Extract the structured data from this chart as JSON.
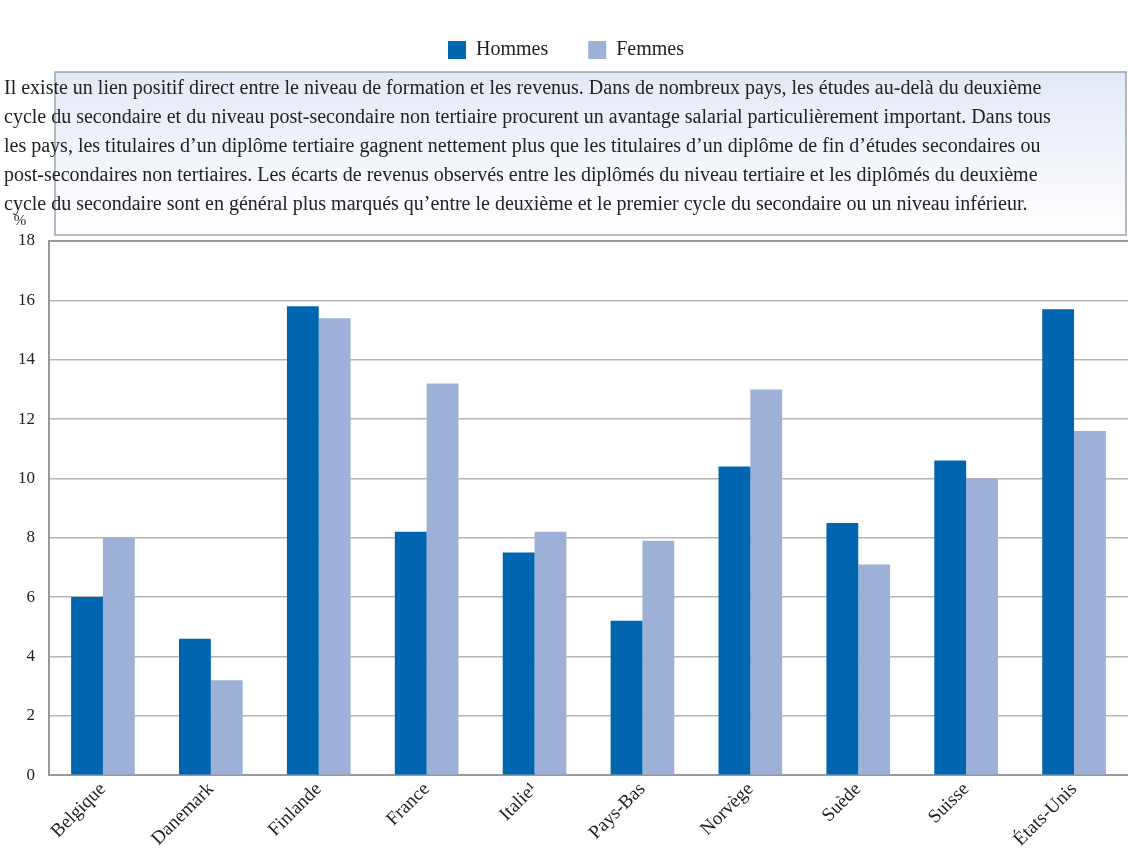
{
  "chart_data": {
    "type": "bar",
    "categories": [
      "Belgique",
      "Danemark",
      "Finlande",
      "France",
      "Italie¹",
      "Pays-Bas",
      "Norvège",
      "Suède",
      "Suisse",
      "États-Unis"
    ],
    "series": [
      {
        "name": "Hommes",
        "color": "#0066b0",
        "values": [
          6.0,
          4.6,
          15.8,
          8.2,
          7.5,
          5.2,
          10.4,
          8.5,
          10.6,
          15.7
        ]
      },
      {
        "name": "Femmes",
        "color": "#9db0d8",
        "values": [
          8.0,
          3.2,
          15.4,
          13.2,
          8.2,
          7.9,
          13.0,
          7.1,
          10.0,
          11.6
        ]
      }
    ],
    "ylabel": "%",
    "ylim": [
      0,
      18
    ],
    "yticks": [
      0,
      2,
      4,
      6,
      8,
      10,
      12,
      14,
      16,
      18
    ],
    "grid": "y",
    "legend": "top",
    "annotations": [
      "Il existe un lien positif direct entre le niveau de formation et les revenus. Dans de nombreux pays, les études au-delà du deuxième cycle du secondaire et du niveau post-secondaire non tertiaire procurent un avantage salarial particulièrement important. Dans tous les pays, les titulaires d’un diplôme tertiaire gagnent nettement plus que les titulaires d’un diplôme de fin d’études secondaires ou post-secondaires non tertiaires. Les écarts de revenus observés entre les diplômés du niveau tertiaire et les diplômés du deuxième cycle du secondaire sont en général plus marqués qu’entre le deuxième et le premier cycle du secondaire ou un niveau inférieur."
    ]
  }
}
